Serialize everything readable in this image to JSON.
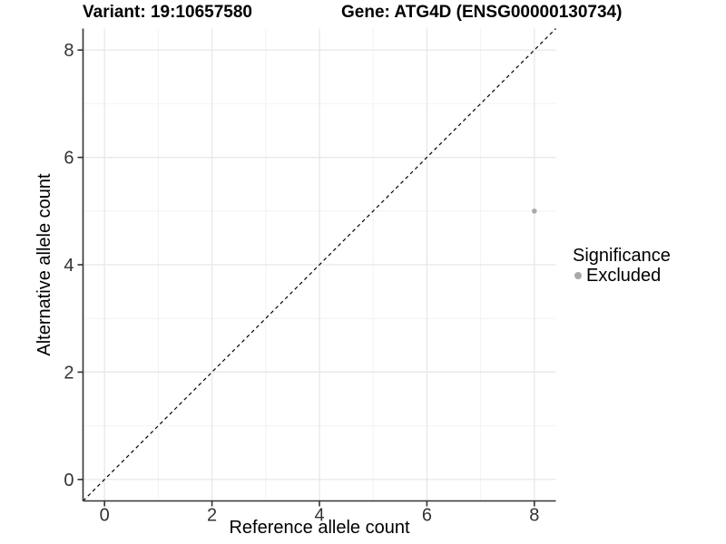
{
  "titles": {
    "variant": "Variant: 19:10657580",
    "gene": "Gene: ATG4D (ENSG00000130734)"
  },
  "chart_data": {
    "type": "scatter",
    "xlabel": "Reference allele count",
    "ylabel": "Alternative allele count",
    "xlim": [
      -0.4,
      8.4
    ],
    "ylim": [
      -0.4,
      8.4
    ],
    "x_ticks": [
      0,
      2,
      4,
      6,
      8
    ],
    "y_ticks": [
      0,
      2,
      4,
      6,
      8
    ],
    "minor_ticks": [
      1,
      3,
      5,
      7
    ],
    "grid": true,
    "points": [
      {
        "x": 8,
        "y": 5,
        "series": "Excluded"
      }
    ],
    "identity_line": {
      "slope": 1,
      "intercept": 0,
      "style": "dashed"
    },
    "legend": {
      "title": "Significance",
      "position": "right",
      "items": [
        {
          "label": "Excluded",
          "color": "#a9a9a9"
        }
      ]
    },
    "colors": {
      "point": "#a9a9a9",
      "grid_major": "#e6e6e6",
      "grid_minor": "#f2f2f2",
      "axis": "#333333",
      "tick_label": "#333333",
      "dashed_line": "#000000",
      "background": "#ffffff"
    }
  }
}
